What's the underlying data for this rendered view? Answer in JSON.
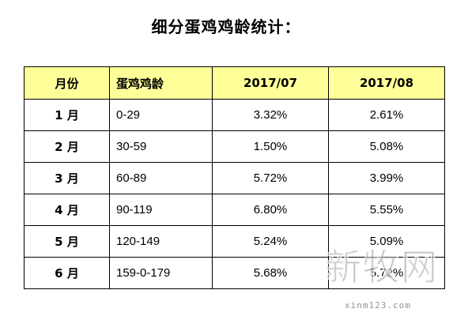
{
  "title": "细分蛋鸡鸡龄统计：",
  "table": {
    "headers": [
      "月份",
      "蛋鸡鸡龄",
      "2017/07",
      "2017/08"
    ],
    "rows": [
      {
        "month": "1 月",
        "age": "0-29",
        "jul": "3.32%",
        "aug": "2.61%"
      },
      {
        "month": "2 月",
        "age": "30-59",
        "jul": "1.50%",
        "aug": "5.08%"
      },
      {
        "month": "3 月",
        "age": "60-89",
        "jul": "5.72%",
        "aug": "3.99%"
      },
      {
        "month": "4 月",
        "age": "90-119",
        "jul": "6.80%",
        "aug": "5.55%"
      },
      {
        "month": "5 月",
        "age": "120-149",
        "jul": "5.24%",
        "aug": "5.09%"
      },
      {
        "month": "6 月",
        "age": "159-0-179",
        "jul": "5.68%",
        "aug": "5.72%"
      }
    ]
  },
  "watermark": {
    "logo_text": "新牧网",
    "url": "xinm123.com"
  },
  "colors": {
    "header_bg": "#ffff99",
    "border": "#000000"
  }
}
